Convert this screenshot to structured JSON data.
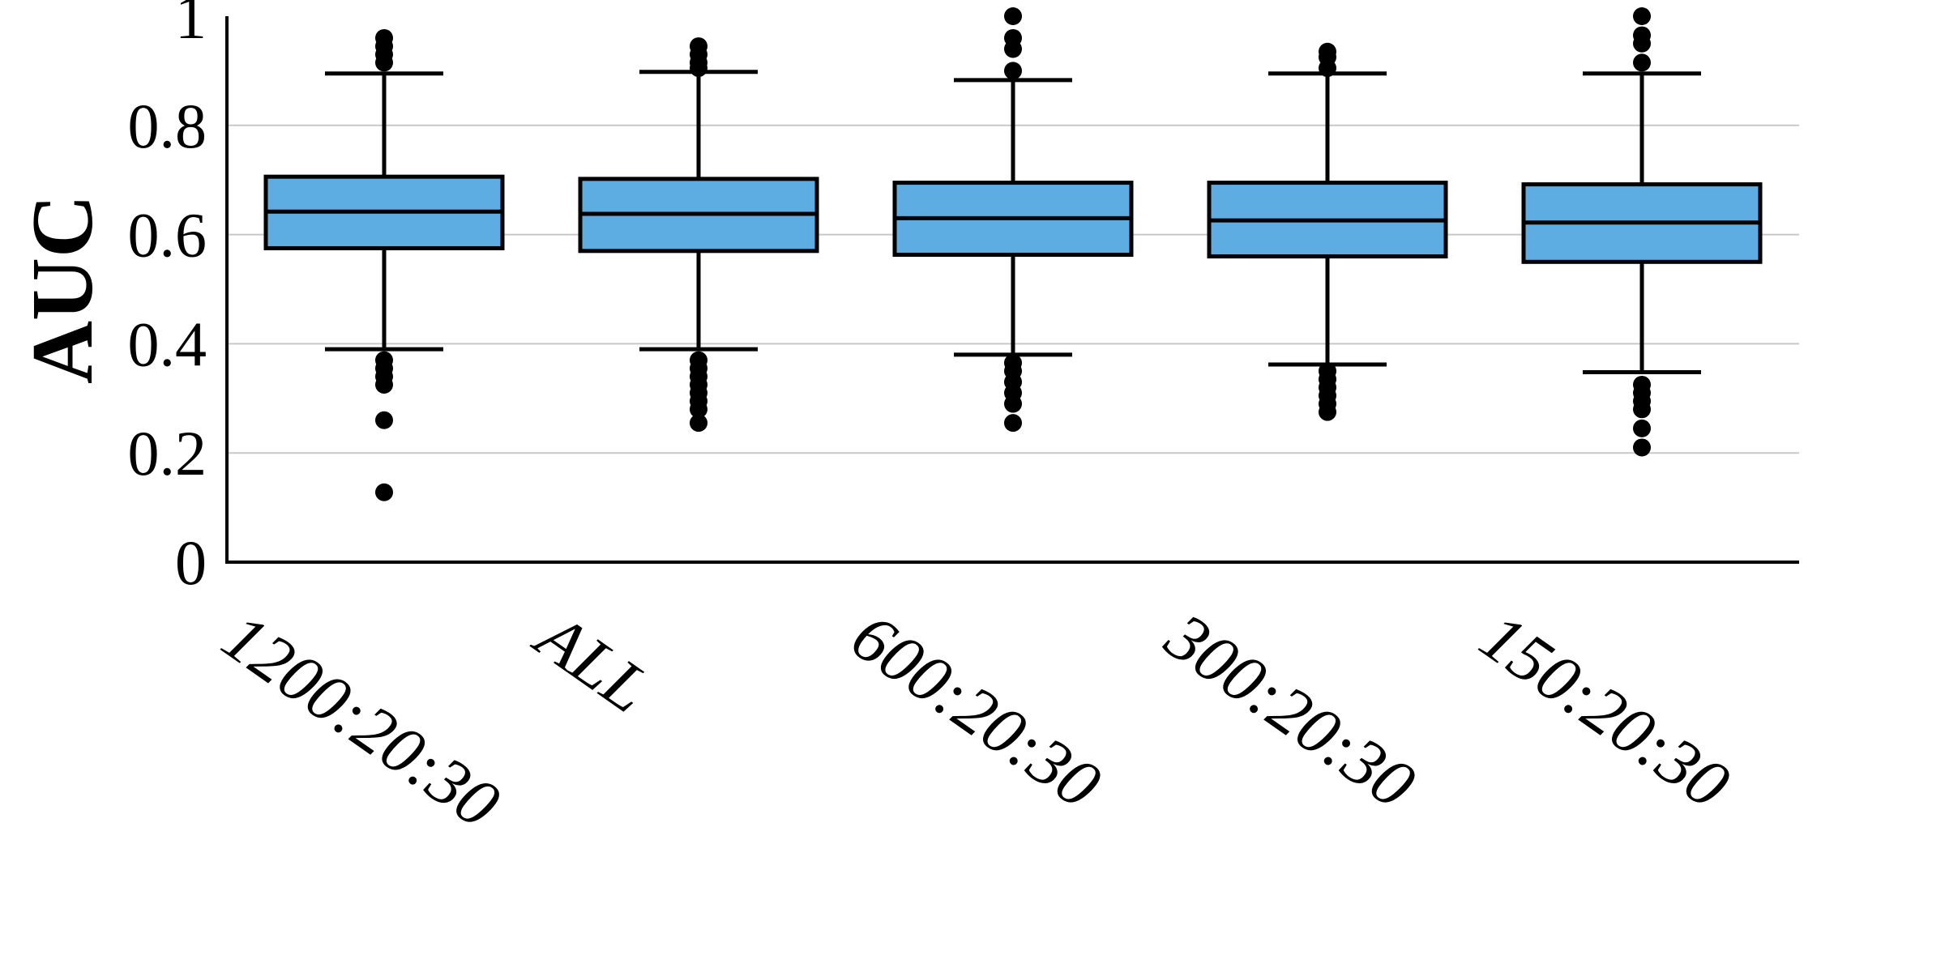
{
  "chart_data": {
    "type": "box",
    "title": "",
    "xlabel": "",
    "ylabel": "AUC",
    "ylim": [
      0,
      1
    ],
    "yticks": [
      "0",
      "0.2",
      "0.4",
      "0.6",
      "0.8",
      "1"
    ],
    "ytick_values": [
      0,
      0.2,
      0.4,
      0.6,
      0.8,
      1
    ],
    "grid": "horizontal",
    "colors": {
      "box_fill": "#5DADE2",
      "box_edge": "#000000",
      "grid": "#c8c8c8"
    },
    "categories": [
      "1200:20:30",
      "ALL",
      "600:20:30",
      "300:20:30",
      "150:20:30"
    ],
    "boxes": [
      {
        "label": "1200:20:30",
        "whisker_low": 0.39,
        "q1": 0.575,
        "median": 0.642,
        "q3": 0.706,
        "whisker_high": 0.895,
        "outliers": [
          0.96,
          0.945,
          0.93,
          0.915,
          0.37,
          0.355,
          0.34,
          0.325,
          0.26,
          0.128
        ]
      },
      {
        "label": "ALL",
        "whisker_low": 0.39,
        "q1": 0.57,
        "median": 0.638,
        "q3": 0.702,
        "whisker_high": 0.898,
        "outliers": [
          0.945,
          0.93,
          0.915,
          0.905,
          0.37,
          0.355,
          0.34,
          0.325,
          0.31,
          0.295,
          0.28,
          0.255
        ]
      },
      {
        "label": "600:20:30",
        "whisker_low": 0.38,
        "q1": 0.563,
        "median": 0.63,
        "q3": 0.695,
        "whisker_high": 0.883,
        "outliers": [
          1.0,
          0.96,
          0.94,
          0.9,
          0.365,
          0.35,
          0.33,
          0.31,
          0.29,
          0.255
        ]
      },
      {
        "label": "300:20:30",
        "whisker_low": 0.362,
        "q1": 0.56,
        "median": 0.626,
        "q3": 0.695,
        "whisker_high": 0.895,
        "outliers": [
          0.935,
          0.925,
          0.905,
          0.35,
          0.335,
          0.32,
          0.305,
          0.29,
          0.275
        ]
      },
      {
        "label": "150:20:30",
        "whisker_low": 0.348,
        "q1": 0.55,
        "median": 0.622,
        "q3": 0.692,
        "whisker_high": 0.895,
        "outliers": [
          1.0,
          0.965,
          0.95,
          0.915,
          0.325,
          0.31,
          0.295,
          0.28,
          0.245,
          0.21
        ]
      }
    ]
  }
}
